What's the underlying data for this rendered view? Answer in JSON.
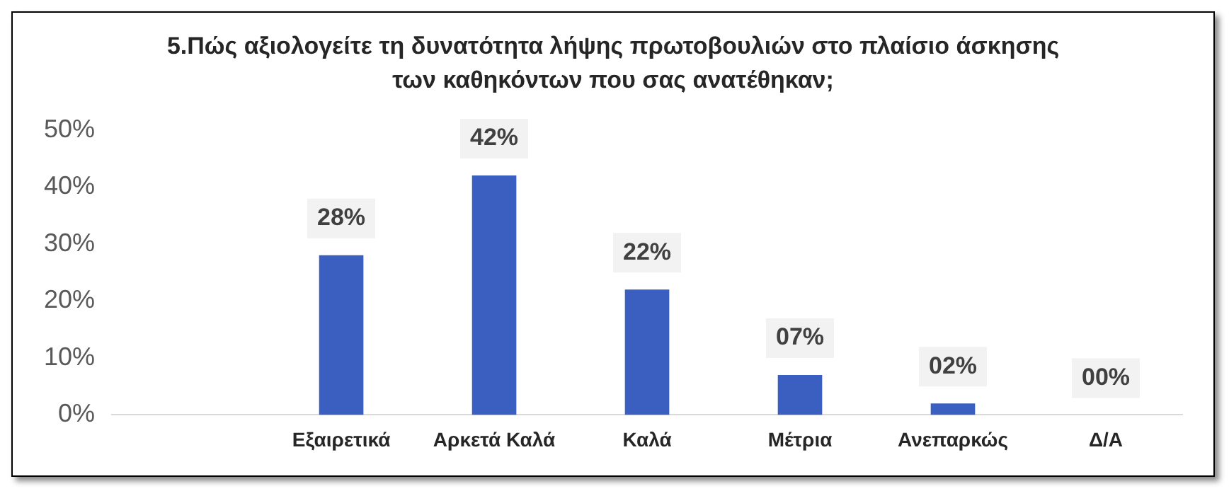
{
  "chart_data": {
    "type": "bar",
    "title": "5.Πώς αξιολογείτε τη δυνατότητα λήψης πρωτοβουλιών στο πλαίσιο άσκησης των καθηκόντων που σας ανατέθηκαν;",
    "categories": [
      null,
      "Εξαιρετικά",
      "Αρκετά Καλά",
      "Καλά",
      "Μέτρια",
      "Ανεπαρκώς",
      "Δ/Α"
    ],
    "values": [
      null,
      28,
      42,
      22,
      7,
      2,
      0
    ],
    "value_labels": [
      null,
      "28%",
      "42%",
      "22%",
      "07%",
      "02%",
      "00%"
    ],
    "color": "#3a5fc0",
    "ylim": [
      0,
      50
    ],
    "yticks": [
      {
        "value": 0,
        "label": "0%"
      },
      {
        "value": 10,
        "label": "10%"
      },
      {
        "value": 20,
        "label": "20%"
      },
      {
        "value": 30,
        "label": "30%"
      },
      {
        "value": 40,
        "label": "40%"
      },
      {
        "value": 50,
        "label": "50%"
      }
    ],
    "grid": false,
    "legend": false
  }
}
